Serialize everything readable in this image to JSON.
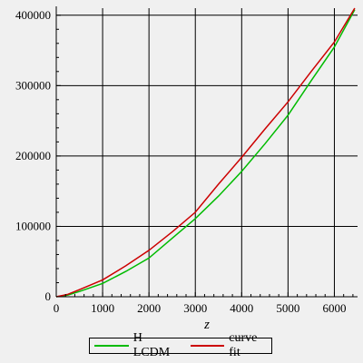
{
  "chart_data": {
    "type": "line",
    "title": "",
    "xlabel": "z",
    "ylabel": "",
    "xlim": [
      0,
      6500
    ],
    "ylim": [
      0,
      410000
    ],
    "x_ticks": [
      0,
      1000,
      2000,
      3000,
      4000,
      5000,
      6000
    ],
    "y_ticks": [
      0,
      100000,
      200000,
      300000,
      400000
    ],
    "grid": true,
    "legend_position": "bottom",
    "series": [
      {
        "name": "H LCDM",
        "color": "#00bb00",
        "x": [
          0,
          250,
          500,
          1000,
          1500,
          2000,
          2500,
          3000,
          3500,
          4000,
          4500,
          5000,
          5500,
          6000,
          6440
        ],
        "y": [
          0,
          2500,
          7500,
          19000,
          36000,
          55000,
          83000,
          111000,
          143000,
          178000,
          217000,
          258000,
          307000,
          355000,
          408000
        ]
      },
      {
        "name": "curve fit",
        "color": "#cc0000",
        "x": [
          0,
          250,
          500,
          1000,
          1500,
          2000,
          2500,
          3000,
          3500,
          4000,
          4500,
          5000,
          5500,
          6000,
          6440
        ],
        "y": [
          0,
          3500,
          10000,
          24000,
          44000,
          66000,
          92000,
          120000,
          160000,
          198000,
          238000,
          277000,
          320000,
          362000,
          410000
        ]
      }
    ]
  }
}
